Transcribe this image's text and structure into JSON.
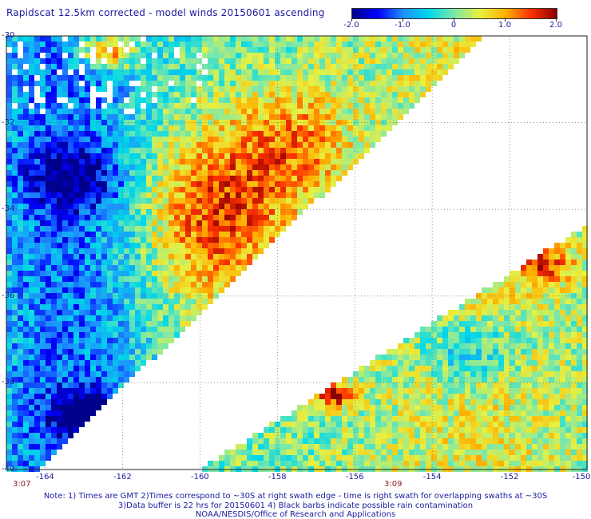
{
  "title": "Rapidscat 12.5km corrected - model winds 20150601 ascending",
  "colorbar": {
    "ticks": [
      {
        "value": -2.0,
        "label": "-2.0"
      },
      {
        "value": -1.0,
        "label": "-1.0"
      },
      {
        "value": 0,
        "label": "0"
      },
      {
        "value": 1.0,
        "label": "1.0"
      },
      {
        "value": 2.0,
        "label": "2.0"
      }
    ],
    "colors": [
      "#00008b",
      "#0000ff",
      "#1e90ff",
      "#00d8e8",
      "#7ee8a8",
      "#e8f040",
      "#ffb000",
      "#ff3000",
      "#8b0000"
    ]
  },
  "map": {
    "lat_range": [
      -40,
      -30
    ],
    "lon_range": [
      -165,
      -150
    ],
    "lat_labels": [
      "-30",
      "-32",
      "-34",
      "-36",
      "-38",
      "-40"
    ],
    "lon_labels": [
      "-164",
      "-162",
      "-160",
      "-158",
      "-156",
      "-154",
      "-152",
      "-150"
    ],
    "swaths": [
      {
        "name": "swath-1",
        "time": "3:07"
      },
      {
        "name": "swath-2",
        "time": "3:09"
      }
    ]
  },
  "notes": [
    "Note: 1) Times are GMT 2)Times correspond to ~30S at right swath edge - time is right swath for overlapping swaths at ~30S",
    "3)Data buffer is 22 hrs for 20150601 4) Black barbs indicate possible rain contamination",
    "NOAA/NESDIS/Office of Research and Applications"
  ]
}
